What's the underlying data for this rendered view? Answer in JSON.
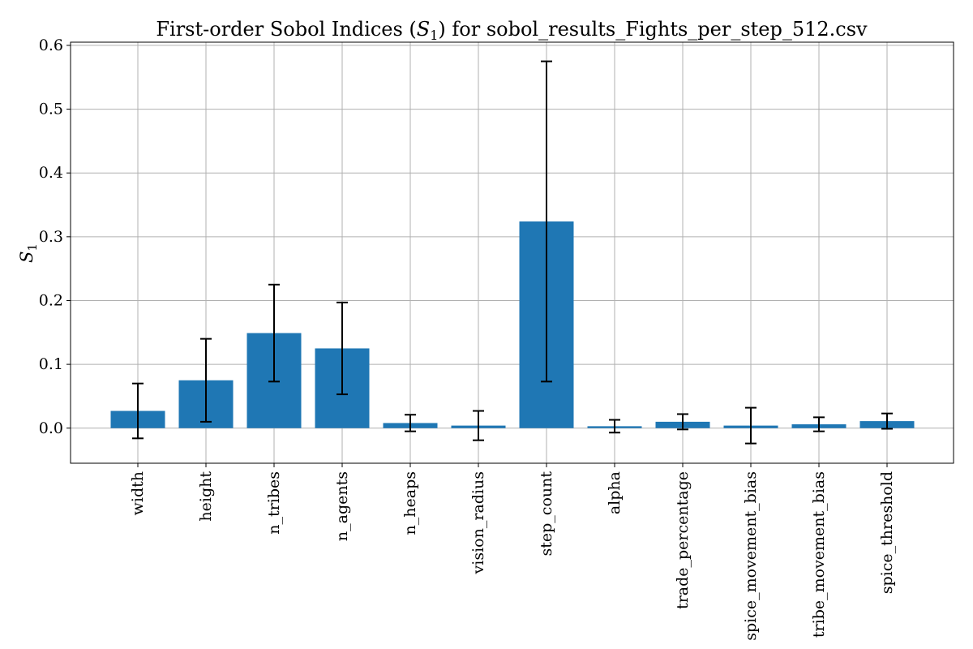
{
  "chart_data": {
    "type": "bar",
    "title_prefix": "First-order Sobol Indices (",
    "title_symbol": "S",
    "title_subscript": "1",
    "title_suffix": ") for sobol_results_Fights_per_step_512.csv",
    "ylabel_symbol": "S",
    "ylabel_subscript": "1",
    "xlabel": "",
    "ylim": [
      -0.055,
      0.605
    ],
    "yticks": [
      0.0,
      0.1,
      0.2,
      0.3,
      0.4,
      0.5,
      0.6
    ],
    "ytick_labels": [
      "0.0",
      "0.1",
      "0.2",
      "0.3",
      "0.4",
      "0.5",
      "0.6"
    ],
    "grid": true,
    "categories": [
      "width",
      "height",
      "n_tribes",
      "n_agents",
      "n_heaps",
      "vision_radius",
      "step_count",
      "alpha",
      "trade_percentage",
      "spice_movement_bias",
      "tribe_movement_bias",
      "spice_threshold"
    ],
    "values": [
      0.027,
      0.075,
      0.149,
      0.125,
      0.008,
      0.004,
      0.324,
      0.003,
      0.01,
      0.004,
      0.006,
      0.011
    ],
    "errors": [
      0.043,
      0.065,
      0.076,
      0.072,
      0.013,
      0.023,
      0.251,
      0.01,
      0.012,
      0.028,
      0.011,
      0.012
    ],
    "colors": {
      "bar": "#1f77b4",
      "error": "#000000",
      "grid": "#b0b0b0"
    }
  }
}
